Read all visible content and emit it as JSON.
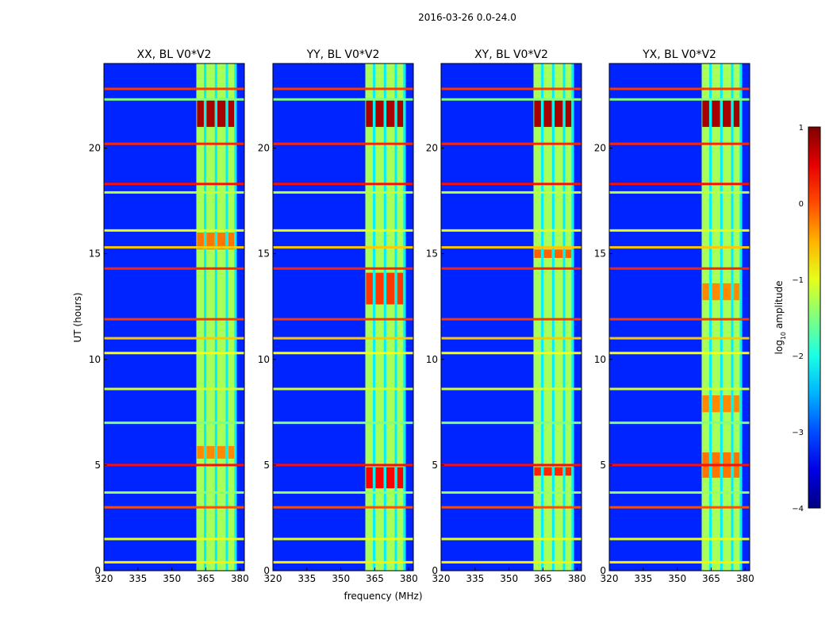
{
  "figure_title": "2016-03-26 0.0-24.0",
  "colorbar": {
    "label_prefix": "log",
    "label_sub": "10",
    "label_suffix": " amplitude",
    "ticks": [
      "1",
      "0",
      "−1",
      "−2",
      "−3",
      "−4"
    ],
    "tick_values": [
      1,
      0,
      -1,
      -2,
      -3,
      -4
    ],
    "colormap": "jet",
    "vmin": -4,
    "vmax": 1
  },
  "chart_data": {
    "type": "heatmap",
    "title": "2016-03-26 0.0-24.0",
    "xlabel": "frequency (MHz)",
    "ylabel": "UT (hours)",
    "xlim": [
      320,
      382
    ],
    "ylim": [
      0,
      24
    ],
    "x_ticks": [
      320,
      335,
      350,
      365,
      380
    ],
    "x_tick_labels": [
      "320",
      "335",
      "350",
      "365",
      "380"
    ],
    "y_ticks": [
      0,
      5,
      10,
      15,
      20
    ],
    "y_tick_labels": [
      "0",
      "5",
      "10",
      "15",
      "20"
    ],
    "panels": [
      {
        "title": "XX, BL V0*V2",
        "pol": "XX"
      },
      {
        "title": "YY, BL V0*V2",
        "pol": "YY"
      },
      {
        "title": "XY, BL V0*V2",
        "pol": "XY"
      },
      {
        "title": "YX, BL V0*V2",
        "pol": "YX"
      }
    ],
    "background_level": -3.2,
    "band": {
      "freq_start_mhz": 360.8,
      "freq_end_mhz": 378.6,
      "level": -1.3,
      "dark_column_centers_mhz": [
        364.7,
        369.5,
        374.3,
        378.1
      ],
      "dark_column_level": -2.2
    },
    "rfi_lines": [
      {
        "ut": 22.8,
        "level": 0.1
      },
      {
        "ut": 22.3,
        "level": -1.5
      },
      {
        "ut": 20.2,
        "level": 0.2
      },
      {
        "ut": 18.3,
        "level": 0.3
      },
      {
        "ut": 17.9,
        "level": -1.2
      },
      {
        "ut": 16.1,
        "level": -1.0
      },
      {
        "ut": 15.3,
        "level": -0.6
      },
      {
        "ut": 14.3,
        "level": 0.2
      },
      {
        "ut": 11.9,
        "level": 0.1
      },
      {
        "ut": 11.0,
        "level": -0.6
      },
      {
        "ut": 10.3,
        "level": -0.9
      },
      {
        "ut": 8.6,
        "level": -1.1
      },
      {
        "ut": 7.0,
        "level": -1.5
      },
      {
        "ut": 5.0,
        "level": 0.3
      },
      {
        "ut": 3.7,
        "level": -1.4
      },
      {
        "ut": 3.0,
        "level": 0.0
      },
      {
        "ut": 1.5,
        "level": -1.0
      },
      {
        "ut": 0.4,
        "level": -0.8
      }
    ],
    "hot_spots": [
      {
        "panel": "XX",
        "ut_range": [
          21.0,
          22.3
        ],
        "level": 0.8
      },
      {
        "panel": "XX",
        "ut_range": [
          15.2,
          16.0
        ],
        "level": -0.2
      },
      {
        "panel": "XX",
        "ut_range": [
          5.3,
          5.9
        ],
        "level": -0.3
      },
      {
        "panel": "YY",
        "ut_range": [
          21.0,
          22.3
        ],
        "level": 0.8
      },
      {
        "panel": "YY",
        "ut_range": [
          12.6,
          14.1
        ],
        "level": 0.1
      },
      {
        "panel": "YY",
        "ut_range": [
          3.9,
          4.9
        ],
        "level": 0.4
      },
      {
        "panel": "XY",
        "ut_range": [
          21.0,
          22.3
        ],
        "level": 0.8
      },
      {
        "panel": "XY",
        "ut_range": [
          14.8,
          15.2
        ],
        "level": -0.1
      },
      {
        "panel": "XY",
        "ut_range": [
          4.5,
          4.9
        ],
        "level": 0.2
      },
      {
        "panel": "YX",
        "ut_range": [
          21.0,
          22.3
        ],
        "level": 0.8
      },
      {
        "panel": "YX",
        "ut_range": [
          12.8,
          13.6
        ],
        "level": -0.3
      },
      {
        "panel": "YX",
        "ut_range": [
          7.5,
          8.3
        ],
        "level": -0.3
      },
      {
        "panel": "YX",
        "ut_range": [
          4.4,
          5.6
        ],
        "level": -0.2
      }
    ]
  }
}
